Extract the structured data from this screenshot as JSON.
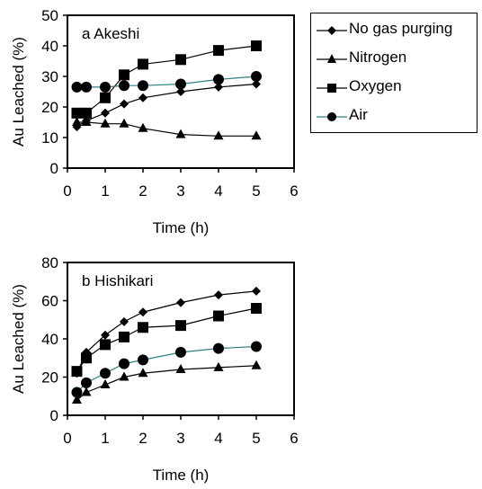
{
  "legend": {
    "series": [
      "No gas purging",
      "Nitrogen",
      "Oxygen",
      "Air"
    ],
    "line_colors": [
      "#000000",
      "#000000",
      "#000000",
      "#2f7f86"
    ]
  },
  "chart_data": [
    {
      "type": "line",
      "title": "a Akeshi",
      "xlabel": "Time (h)",
      "ylabel": "Au Leached (%)",
      "xlim": [
        0,
        6
      ],
      "ylim": [
        0,
        50
      ],
      "xticks": [
        0,
        1,
        2,
        3,
        4,
        5,
        6
      ],
      "yticks": [
        0,
        10,
        20,
        30,
        40,
        50
      ],
      "grid": false,
      "legend": "right, outside",
      "series": [
        {
          "name": "No gas purging",
          "marker": "diamond",
          "x": [
            0.25,
            0.5,
            1,
            1.5,
            2,
            3,
            4,
            5
          ],
          "y": [
            13.5,
            15.5,
            18,
            21,
            23,
            25,
            26.5,
            27.5
          ]
        },
        {
          "name": "Nitrogen",
          "marker": "triangle",
          "x": [
            0.25,
            0.5,
            1,
            1.5,
            2,
            3,
            4,
            5
          ],
          "y": [
            15,
            15,
            14.5,
            14.5,
            13,
            11,
            10.5,
            10.5
          ]
        },
        {
          "name": "Oxygen",
          "marker": "square",
          "x": [
            0.25,
            0.5,
            1,
            1.5,
            2,
            3,
            4,
            5
          ],
          "y": [
            18,
            18,
            23,
            30.5,
            34,
            35.5,
            38.5,
            40
          ]
        },
        {
          "name": "Air",
          "marker": "circle",
          "x": [
            0.25,
            0.5,
            1,
            1.5,
            2,
            3,
            4,
            5
          ],
          "y": [
            26.5,
            26.5,
            26.5,
            27,
            27,
            27.5,
            29,
            30
          ]
        }
      ]
    },
    {
      "type": "line",
      "title": "b  Hishikari",
      "xlabel": "Time (h)",
      "ylabel": "Au Leached (%)",
      "xlim": [
        0,
        6
      ],
      "ylim": [
        0,
        80
      ],
      "xticks": [
        0,
        1,
        2,
        3,
        4,
        5,
        6
      ],
      "yticks": [
        0,
        20,
        40,
        60,
        80
      ],
      "grid": false,
      "series": [
        {
          "name": "No gas purging",
          "marker": "diamond",
          "x": [
            0.25,
            0.5,
            1,
            1.5,
            2,
            3,
            4,
            5
          ],
          "y": [
            22,
            33,
            42,
            49,
            54,
            59,
            63,
            65
          ]
        },
        {
          "name": "Nitrogen",
          "marker": "triangle",
          "x": [
            0.25,
            0.5,
            1,
            1.5,
            2,
            3,
            4,
            5
          ],
          "y": [
            8,
            12,
            16,
            20,
            22,
            24,
            25,
            26
          ]
        },
        {
          "name": "Oxygen",
          "marker": "square",
          "x": [
            0.25,
            0.5,
            1,
            1.5,
            2,
            3,
            4,
            5
          ],
          "y": [
            23,
            30,
            37,
            41,
            46,
            47,
            52,
            56
          ]
        },
        {
          "name": "Air",
          "marker": "circle",
          "x": [
            0.25,
            0.5,
            1,
            1.5,
            2,
            3,
            4,
            5
          ],
          "y": [
            12,
            17,
            22,
            27,
            29,
            33,
            35,
            36
          ]
        }
      ]
    }
  ]
}
